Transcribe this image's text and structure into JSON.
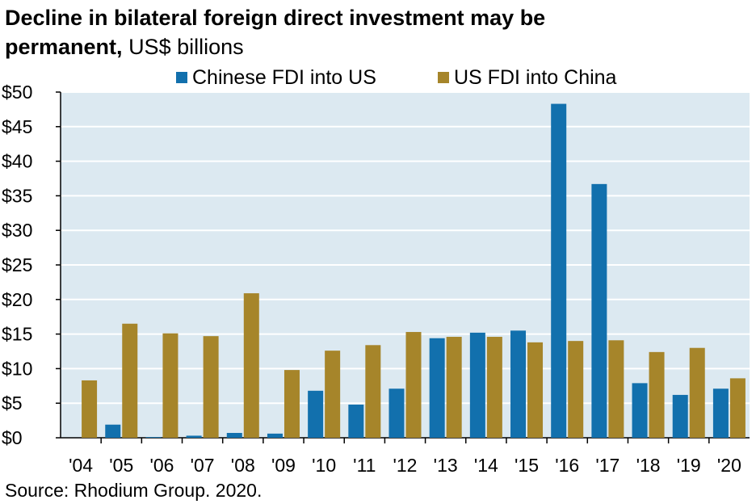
{
  "title": "Decline in bilateral foreign direct investment may be",
  "title_line2": "permanent,",
  "subtitle": "US$ billions",
  "source": "Source: Rhodium Group. 2020.",
  "colors": {
    "chinese_fdi": "#1270ad",
    "us_fdi": "#a6852a",
    "plot_bg": "#dce9f1",
    "grid": "#ffffff"
  },
  "chart_data": {
    "type": "bar",
    "categories": [
      "'04",
      "'05",
      "'06",
      "'07",
      "'08",
      "'09",
      "'10",
      "'11",
      "'12",
      "'13",
      "'14",
      "'15",
      "'16",
      "'17",
      "'18",
      "'19",
      "'20"
    ],
    "series": [
      {
        "name": "Chinese FDI into US",
        "values": [
          0,
          1.9,
          0.1,
          0.3,
          0.7,
          0.6,
          6.8,
          4.8,
          7.1,
          14.4,
          15.2,
          15.5,
          48.3,
          36.7,
          7.9,
          6.2,
          7.1
        ]
      },
      {
        "name": "US FDI into China",
        "values": [
          8.3,
          16.5,
          15.1,
          14.7,
          20.9,
          9.8,
          12.6,
          13.4,
          15.3,
          14.6,
          14.6,
          13.8,
          14.0,
          14.1,
          12.4,
          13.0,
          8.6
        ]
      }
    ],
    "y_ticks": [
      "$0",
      "$5",
      "$10",
      "$15",
      "$20",
      "$25",
      "$30",
      "$35",
      "$40",
      "$45",
      "$50"
    ],
    "ylim": [
      0,
      50
    ],
    "legend_position": "top",
    "grid": true,
    "xlabel": "",
    "ylabel": ""
  }
}
